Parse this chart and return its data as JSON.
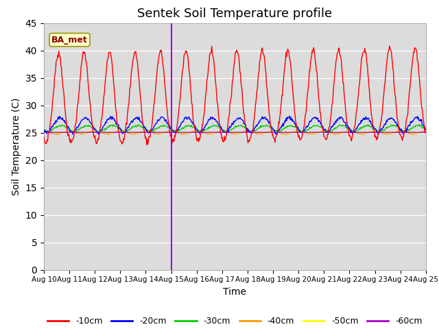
{
  "title": "Sentek Soil Temperature profile",
  "xlabel": "Time",
  "ylabel": "Soil Temperature (C)",
  "ylim": [
    0,
    45
  ],
  "yticks": [
    0,
    5,
    10,
    15,
    20,
    25,
    30,
    35,
    40,
    45
  ],
  "annotation_label": "BA_met",
  "plot_bg_color": "#dcdcdc",
  "fig_bg_color": "#ffffff",
  "grid_color": "#ffffff",
  "line_colors": {
    "-10cm": "#ff0000",
    "-20cm": "#0000ff",
    "-30cm": "#00cc00",
    "-40cm": "#ff9900",
    "-50cm": "#ffff00",
    "-60cm": "#aa00cc"
  },
  "vline_x": 5.0,
  "vline_color": "#aa00cc",
  "num_days": 15,
  "start_day": 10,
  "figsize": [
    6.4,
    4.8
  ],
  "dpi": 100
}
